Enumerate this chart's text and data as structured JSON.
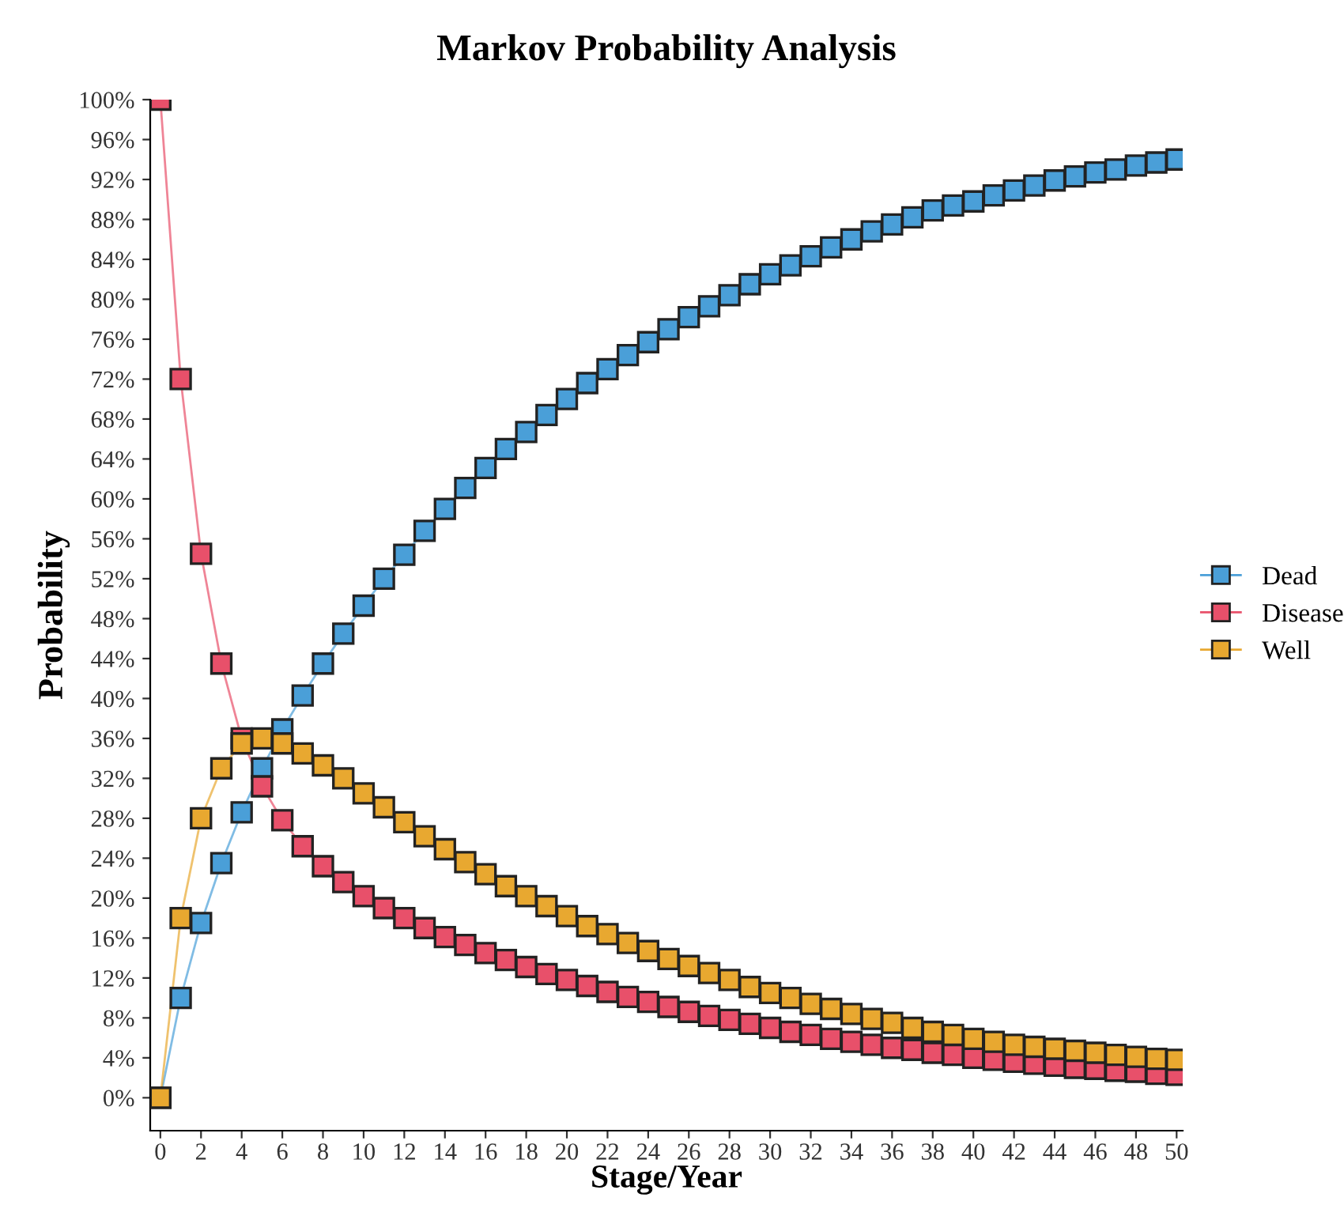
{
  "chart_data": {
    "type": "line",
    "title": "Markov Probability Analysis",
    "xlabel": "Stage/Year",
    "ylabel": "Probability",
    "x": [
      0,
      1,
      2,
      3,
      4,
      5,
      6,
      7,
      8,
      9,
      10,
      11,
      12,
      13,
      14,
      15,
      16,
      17,
      18,
      19,
      20,
      21,
      22,
      23,
      24,
      25,
      26,
      27,
      28,
      29,
      30,
      31,
      32,
      33,
      34,
      35,
      36,
      37,
      38,
      39,
      40,
      41,
      42,
      43,
      44,
      45,
      46,
      47,
      48,
      49,
      50
    ],
    "series": [
      {
        "name": "Dead",
        "color": "#4a9fd8",
        "values": [
          0,
          10,
          17.5,
          23.5,
          28.6,
          33,
          36.9,
          40.3,
          43.5,
          46.5,
          49.3,
          52,
          54.4,
          56.8,
          59,
          61.1,
          63.1,
          65,
          66.7,
          68.4,
          70,
          71.6,
          73,
          74.4,
          75.7,
          77,
          78.2,
          79.3,
          80.4,
          81.5,
          82.5,
          83.4,
          84.3,
          85.2,
          86,
          86.8,
          87.5,
          88.2,
          88.9,
          89.4,
          89.8,
          90.4,
          90.9,
          91.4,
          91.9,
          92.3,
          92.7,
          93.0,
          93.4,
          93.7,
          94.0
        ]
      },
      {
        "name": "Disease",
        "color": "#e8506a",
        "values": [
          100,
          72,
          54.5,
          43.5,
          36,
          31.2,
          27.8,
          25.2,
          23.2,
          21.6,
          20.2,
          19,
          18,
          17,
          16.1,
          15.3,
          14.5,
          13.8,
          13.1,
          12.4,
          11.8,
          11.2,
          10.6,
          10.1,
          9.6,
          9.1,
          8.6,
          8.2,
          7.8,
          7.4,
          7.0,
          6.6,
          6.3,
          5.9,
          5.6,
          5.3,
          5.0,
          4.8,
          4.5,
          4.3,
          4.0,
          3.8,
          3.6,
          3.4,
          3.2,
          3.0,
          2.9,
          2.7,
          2.6,
          2.4,
          2.3
        ]
      },
      {
        "name": "Well",
        "color": "#e8a830",
        "values": [
          0,
          18,
          28,
          33,
          35.5,
          36,
          35.5,
          34.5,
          33.3,
          32,
          30.5,
          29.1,
          27.6,
          26.2,
          24.9,
          23.6,
          22.4,
          21.2,
          20.2,
          19.2,
          18.2,
          17.2,
          16.4,
          15.5,
          14.7,
          13.9,
          13.2,
          12.5,
          11.8,
          11.1,
          10.5,
          10.0,
          9.4,
          8.9,
          8.4,
          7.9,
          7.5,
          7.0,
          6.6,
          6.3,
          5.9,
          5.6,
          5.3,
          5.1,
          4.9,
          4.7,
          4.5,
          4.3,
          4.1,
          3.9,
          3.8
        ]
      }
    ],
    "xlim": [
      -0.5,
      50.3
    ],
    "xticks": [
      0,
      2,
      4,
      6,
      8,
      10,
      12,
      14,
      16,
      18,
      20,
      22,
      24,
      26,
      28,
      30,
      32,
      34,
      36,
      38,
      40,
      42,
      44,
      46,
      48,
      50
    ],
    "ylim": [
      -3.3,
      100
    ],
    "yticks": [
      {
        "value": 0,
        "label": "0%"
      },
      {
        "value": 4,
        "label": "4%"
      },
      {
        "value": 8,
        "label": "8%"
      },
      {
        "value": 12,
        "label": "12%"
      },
      {
        "value": 16,
        "label": "16%"
      },
      {
        "value": 20,
        "label": "20%"
      },
      {
        "value": 24,
        "label": "24%"
      },
      {
        "value": 28,
        "label": "28%"
      },
      {
        "value": 32,
        "label": "32%"
      },
      {
        "value": 36,
        "label": "36%"
      },
      {
        "value": 40,
        "label": "40%"
      },
      {
        "value": 44,
        "label": "44%"
      },
      {
        "value": 48,
        "label": "48%"
      },
      {
        "value": 52,
        "label": "52%"
      },
      {
        "value": 56,
        "label": "56%"
      },
      {
        "value": 60,
        "label": "60%"
      },
      {
        "value": 64,
        "label": "64%"
      },
      {
        "value": 68,
        "label": "68%"
      },
      {
        "value": 72,
        "label": "72%"
      },
      {
        "value": 76,
        "label": "76%"
      },
      {
        "value": 80,
        "label": "80%"
      },
      {
        "value": 84,
        "label": "84%"
      },
      {
        "value": 88,
        "label": "88%"
      },
      {
        "value": 92,
        "label": "92%"
      },
      {
        "value": 96,
        "label": "96%"
      },
      {
        "value": 100,
        "label": "100%"
      }
    ],
    "grid": false,
    "legend": "right",
    "marker": "square",
    "line_style": "solid"
  }
}
